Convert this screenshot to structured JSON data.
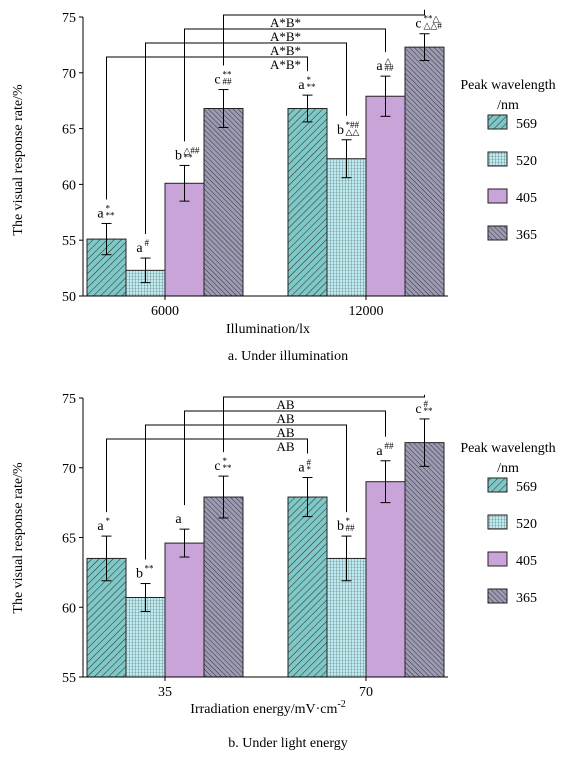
{
  "colors": {
    "569": "#7fc8c8",
    "520": "#bdecf2",
    "405": "#c9a4d8",
    "365": "#9d9bb4",
    "stroke": "#222222"
  },
  "chart_data": [
    {
      "type": "bar",
      "caption": "a. Under illumination",
      "xlabel": "Illumination/lx",
      "ylabel": "The visual response rate/%",
      "ylim": [
        50,
        75
      ],
      "yticks": [
        50,
        55,
        60,
        65,
        70,
        75
      ],
      "categories": [
        "6000",
        "12000"
      ],
      "legend_title": [
        "Peak wavelength",
        "/nm"
      ],
      "legend_position": "right",
      "series": [
        {
          "name": "569",
          "color_key": "569",
          "values": [
            55.1,
            66.8
          ],
          "errors": [
            1.4,
            1.2
          ],
          "labels": [
            {
              "main": "a",
              "sup": "*",
              "sub": "**"
            },
            {
              "main": "a",
              "sup": "*",
              "sub": "**"
            }
          ]
        },
        {
          "name": "520",
          "color_key": "520",
          "values": [
            52.3,
            62.3
          ],
          "errors": [
            1.1,
            1.7
          ],
          "labels": [
            {
              "main": "a",
              "sup": "#",
              "sub": ""
            },
            {
              "main": "b",
              "sup": "*##",
              "sub": "△△"
            }
          ]
        },
        {
          "name": "405",
          "color_key": "405",
          "values": [
            60.1,
            67.9
          ],
          "errors": [
            1.6,
            1.8
          ],
          "labels": [
            {
              "main": "b",
              "sup": "△##",
              "sub": "**"
            },
            {
              "main": "a",
              "sup": "△",
              "sub": "##"
            }
          ]
        },
        {
          "name": "365",
          "color_key": "365",
          "values": [
            66.8,
            72.3
          ],
          "errors": [
            1.7,
            1.2
          ],
          "labels": [
            {
              "main": "c",
              "sup": "**",
              "sub": "##"
            },
            {
              "main": "c",
              "sup": "**△",
              "sub": "△△#"
            }
          ]
        }
      ],
      "brackets": [
        {
          "label": "A*B*",
          "series": 3
        },
        {
          "label": "A*B*",
          "series": 2
        },
        {
          "label": "A*B*",
          "series": 1
        },
        {
          "label": "A*B*",
          "series": 0
        }
      ]
    },
    {
      "type": "bar",
      "caption": "b. Under light energy",
      "xlabel": "Irradiation energy/mV·cm",
      "xlabel_sup": "-2",
      "ylabel": "The visual response rate/%",
      "ylim": [
        55,
        75
      ],
      "yticks": [
        55,
        60,
        65,
        70,
        75
      ],
      "categories": [
        "35",
        "70"
      ],
      "legend_title": [
        "Peak wavelength",
        "/nm"
      ],
      "legend_position": "right",
      "series": [
        {
          "name": "569",
          "color_key": "569",
          "values": [
            63.5,
            67.9
          ],
          "errors": [
            1.6,
            1.4
          ],
          "labels": [
            {
              "main": "a",
              "sup": "*",
              "sub": ""
            },
            {
              "main": "a",
              "sup": "#",
              "sub": "*"
            }
          ]
        },
        {
          "name": "520",
          "color_key": "520",
          "values": [
            60.7,
            63.5
          ],
          "errors": [
            1.0,
            1.6
          ],
          "labels": [
            {
              "main": "b",
              "sup": "**",
              "sub": ""
            },
            {
              "main": "b",
              "sup": "*",
              "sub": "##"
            }
          ]
        },
        {
          "name": "405",
          "color_key": "405",
          "values": [
            64.6,
            69.0
          ],
          "errors": [
            1.0,
            1.5
          ],
          "labels": [
            {
              "main": "a",
              "sup": "",
              "sub": ""
            },
            {
              "main": "a",
              "sup": "##",
              "sub": ""
            }
          ]
        },
        {
          "name": "365",
          "color_key": "365",
          "values": [
            67.9,
            71.8
          ],
          "errors": [
            1.5,
            1.7
          ],
          "labels": [
            {
              "main": "c",
              "sup": "*",
              "sub": "**"
            },
            {
              "main": "c",
              "sup": "#",
              "sub": "**"
            }
          ]
        }
      ],
      "brackets": [
        {
          "label": "AB",
          "series": 3
        },
        {
          "label": "AB",
          "series": 2
        },
        {
          "label": "AB",
          "series": 1
        },
        {
          "label": "AB",
          "series": 0
        }
      ]
    }
  ]
}
